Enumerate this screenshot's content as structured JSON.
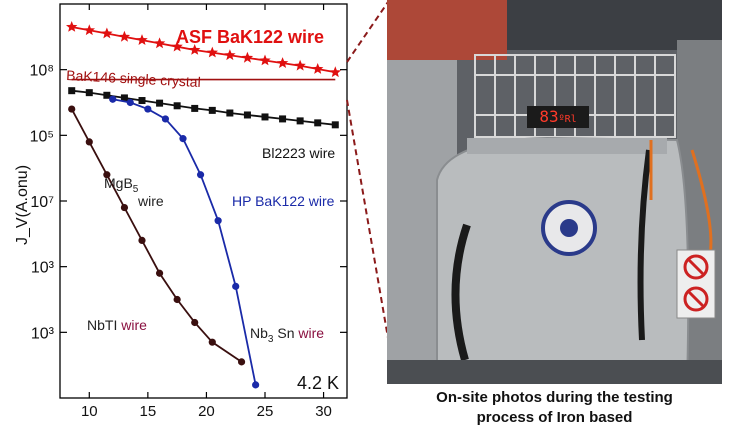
{
  "chart_data": {
    "type": "line",
    "ylabel": "J_V(A.onu)",
    "x_ticks": [
      10,
      15,
      20,
      25,
      30
    ],
    "xlim": [
      7.5,
      32
    ],
    "y_tick_labels": [
      "10⁸",
      "10⁵",
      "10⁷",
      "10³",
      "10³"
    ],
    "y_tick_positions": [
      1,
      2,
      3,
      4,
      5
    ],
    "ylim_levels": [
      0,
      6
    ],
    "y_scale": "log (labels as printed)",
    "temperature_label": "4.2 K",
    "grid": false,
    "series": [
      {
        "name": "ASF BaK122 wire",
        "color": "#e01010",
        "marker": "star",
        "x": [
          8.5,
          10,
          11.5,
          13,
          14.5,
          16,
          17.5,
          19,
          20.5,
          22,
          23.5,
          25,
          26.5,
          28,
          29.5,
          31
        ],
        "y": [
          0.35,
          0.4,
          0.45,
          0.5,
          0.55,
          0.6,
          0.65,
          0.7,
          0.74,
          0.78,
          0.82,
          0.86,
          0.9,
          0.94,
          0.99,
          1.04
        ]
      },
      {
        "name": "BaK146 single crystal",
        "color": "#a01010",
        "marker": "none",
        "x": [
          8.5,
          31
        ],
        "y": [
          1.15,
          1.15
        ]
      },
      {
        "name": "Bl2223 wire",
        "color": "#111111",
        "marker": "square",
        "x": [
          8.5,
          10,
          11.5,
          13,
          14.5,
          16,
          17.5,
          19,
          20.5,
          22,
          23.5,
          25,
          26.5,
          28,
          29.5,
          31
        ],
        "y": [
          1.32,
          1.35,
          1.39,
          1.43,
          1.47,
          1.51,
          1.55,
          1.59,
          1.62,
          1.66,
          1.69,
          1.72,
          1.75,
          1.78,
          1.81,
          1.84
        ]
      },
      {
        "name": "HP BaK122 wire",
        "color": "#1a2aa8",
        "marker": "circle",
        "x": [
          12,
          13.5,
          15,
          16.5,
          18,
          19.5,
          21,
          22.5,
          24.2
        ],
        "y": [
          1.45,
          1.5,
          1.6,
          1.75,
          2.05,
          2.6,
          3.3,
          4.3,
          5.8
        ]
      },
      {
        "name": "NbTI wire",
        "color": "#3a0f0f",
        "marker": "circle",
        "x": [
          8.5,
          10,
          11.5,
          13,
          14.5,
          16,
          17.5,
          19,
          20.5,
          23
        ],
        "y": [
          1.6,
          2.1,
          2.6,
          3.1,
          3.6,
          4.1,
          4.5,
          4.85,
          5.15,
          5.45
        ]
      }
    ],
    "annotations": {
      "asf": "ASF BaK122 wire",
      "bak146": "BaK146 single crystal",
      "bl2223": "Bl2223 wire",
      "mgb5_line1": "MgB",
      "mgb5_sub": "5",
      "mgb5_line2": "wire",
      "hp": "HP BaK122 wire",
      "nbti_a": "NbTI ",
      "nbti_b": "wire",
      "nb3sn_a": "Nb",
      "nb3sn_sub": "3",
      "nb3sn_b": " Sn ",
      "nb3sn_c": "wire"
    }
  },
  "photo": {
    "display_text": "83",
    "display_suffix": "ºRl",
    "caption_line1": "On-site photos during the testing",
    "caption_line2": "process of Iron based"
  },
  "colors": {
    "asf": "#e01010",
    "bak146": "#a01010",
    "bl2223": "#111111",
    "hp": "#1a2aa8",
    "nbti": "#3a0f0f",
    "nb3sn": "#8a1040",
    "connector": "#8b1a1a"
  }
}
